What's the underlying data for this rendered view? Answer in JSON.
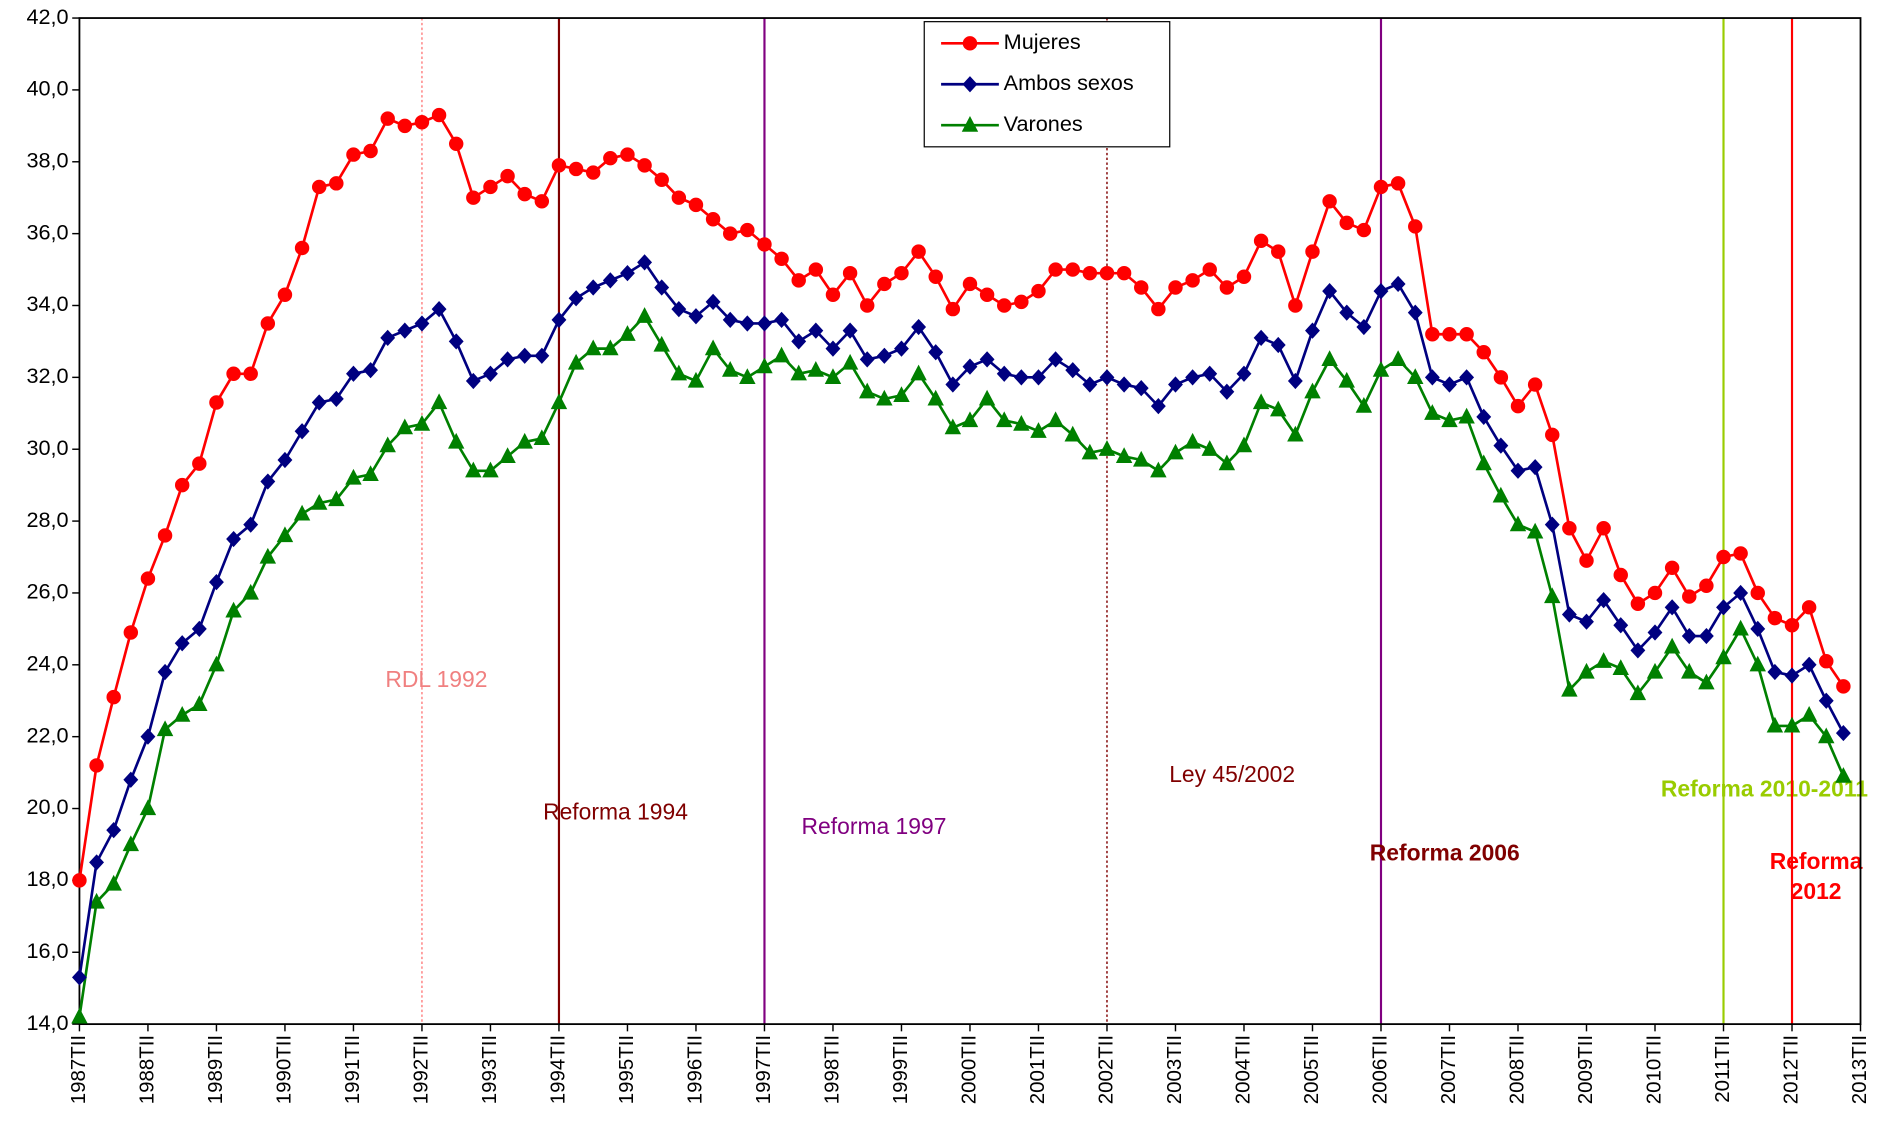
{
  "chart_data": {
    "type": "line",
    "categories": [
      "1987TII",
      null,
      null,
      null,
      "1988TII",
      null,
      null,
      null,
      "1989TII",
      null,
      null,
      null,
      "1990TII",
      null,
      null,
      null,
      "1991TII",
      null,
      null,
      null,
      "1992TII",
      null,
      null,
      null,
      "1993TII",
      null,
      null,
      null,
      "1994TII",
      null,
      null,
      null,
      "1995TII",
      null,
      null,
      null,
      "1996TII",
      null,
      null,
      null,
      "1997TII",
      null,
      null,
      null,
      "1998TII",
      null,
      null,
      null,
      "1999TII",
      null,
      null,
      null,
      "2000TII",
      null,
      null,
      null,
      "2001TII",
      null,
      null,
      null,
      "2002TII",
      null,
      null,
      null,
      "2003TII",
      null,
      null,
      null,
      "2004TII",
      null,
      null,
      null,
      "2005TII",
      null,
      null,
      null,
      "2006TII",
      null,
      null,
      null,
      "2007TII",
      null,
      null,
      null,
      "2008TII",
      null,
      null,
      null,
      "2009TII",
      null,
      null,
      null,
      "2010TII",
      null,
      null,
      null,
      "2011TII",
      null,
      null,
      null,
      "2012TII",
      null,
      null,
      null,
      "2013TII"
    ],
    "series": [
      {
        "name": "Mujeres",
        "color": "#ff0000",
        "marker": "circle",
        "values": [
          18.0,
          21.2,
          23.1,
          24.9,
          26.4,
          27.6,
          29.0,
          29.6,
          31.3,
          32.1,
          32.1,
          33.5,
          34.3,
          35.6,
          37.3,
          37.4,
          38.2,
          38.3,
          39.2,
          39.0,
          39.1,
          39.3,
          38.5,
          37.0,
          37.3,
          37.6,
          37.1,
          36.9,
          37.9,
          37.8,
          37.7,
          38.1,
          38.2,
          37.9,
          37.5,
          37.0,
          36.8,
          36.4,
          36.0,
          36.1,
          35.7,
          35.3,
          34.7,
          35.0,
          34.3,
          34.9,
          34.0,
          34.6,
          34.9,
          35.5,
          34.8,
          33.9,
          34.6,
          34.3,
          34.0,
          34.1,
          34.4,
          35.0,
          35.0,
          34.9,
          34.9,
          34.9,
          34.5,
          33.9,
          34.5,
          34.7,
          35.0,
          34.5,
          34.8,
          35.8,
          35.5,
          34.0,
          35.5,
          36.9,
          36.3,
          36.1,
          37.3,
          37.4,
          36.2,
          33.2,
          33.2,
          33.2,
          32.7,
          32.0,
          31.2,
          31.8,
          30.4,
          27.8,
          26.9,
          27.8,
          26.5,
          25.7,
          26.0,
          26.7,
          25.9,
          26.2,
          27.0,
          27.1,
          26.0,
          25.3,
          25.1,
          25.6,
          24.1,
          23.4,
          null
        ]
      },
      {
        "name": "Ambos sexos",
        "color": "#000080",
        "marker": "diamond",
        "values": [
          15.3,
          18.5,
          19.4,
          20.8,
          22.0,
          23.8,
          24.6,
          25.0,
          26.3,
          27.5,
          27.9,
          29.1,
          29.7,
          30.5,
          31.3,
          31.4,
          32.1,
          32.2,
          33.1,
          33.3,
          33.5,
          33.9,
          33.0,
          31.9,
          32.1,
          32.5,
          32.6,
          32.6,
          33.6,
          34.2,
          34.5,
          34.7,
          34.9,
          35.2,
          34.5,
          33.9,
          33.7,
          34.1,
          33.6,
          33.5,
          33.5,
          33.6,
          33.0,
          33.3,
          32.8,
          33.3,
          32.5,
          32.6,
          32.8,
          33.4,
          32.7,
          31.8,
          32.3,
          32.5,
          32.1,
          32.0,
          32.0,
          32.5,
          32.2,
          31.8,
          32.0,
          31.8,
          31.7,
          31.2,
          31.8,
          32.0,
          32.1,
          31.6,
          32.1,
          33.1,
          32.9,
          31.9,
          33.3,
          34.4,
          33.8,
          33.4,
          34.4,
          34.6,
          33.8,
          32.0,
          31.8,
          32.0,
          30.9,
          30.1,
          29.4,
          29.5,
          27.9,
          25.4,
          25.2,
          25.8,
          25.1,
          24.4,
          24.9,
          25.6,
          24.8,
          24.8,
          25.6,
          26.0,
          25.0,
          23.8,
          23.7,
          24.0,
          23.0,
          22.1,
          null
        ]
      },
      {
        "name": "Varones",
        "color": "#008000",
        "marker": "triangle",
        "values": [
          14.2,
          17.4,
          17.9,
          19.0,
          20.0,
          22.2,
          22.6,
          22.9,
          24.0,
          25.5,
          26.0,
          27.0,
          27.6,
          28.2,
          28.5,
          28.6,
          29.2,
          29.3,
          30.1,
          30.6,
          30.7,
          31.3,
          30.2,
          29.4,
          29.4,
          29.8,
          30.2,
          30.3,
          31.3,
          32.4,
          32.8,
          32.8,
          33.2,
          33.7,
          32.9,
          32.1,
          31.9,
          32.8,
          32.2,
          32.0,
          32.3,
          32.6,
          32.1,
          32.2,
          32.0,
          32.4,
          31.6,
          31.4,
          31.5,
          32.1,
          31.4,
          30.6,
          30.8,
          31.4,
          30.8,
          30.7,
          30.5,
          30.8,
          30.4,
          29.9,
          30.0,
          29.8,
          29.7,
          29.4,
          29.9,
          30.2,
          30.0,
          29.6,
          30.1,
          31.3,
          31.1,
          30.4,
          31.6,
          32.5,
          31.9,
          31.2,
          32.2,
          32.5,
          32.0,
          31.0,
          30.8,
          30.9,
          29.6,
          28.7,
          27.9,
          27.7,
          25.9,
          23.3,
          23.8,
          24.1,
          23.9,
          23.2,
          23.8,
          24.5,
          23.8,
          23.5,
          24.2,
          25.0,
          24.0,
          22.3,
          22.3,
          22.6,
          22.0,
          20.9,
          null
        ]
      }
    ],
    "ylim": [
      14,
      42
    ],
    "yticks": [
      {
        "value": 14,
        "label": "14,0"
      },
      {
        "value": 16,
        "label": "16,0"
      },
      {
        "value": 18,
        "label": "18,0"
      },
      {
        "value": 20,
        "label": "20,0"
      },
      {
        "value": 22,
        "label": "22,0"
      },
      {
        "value": 24,
        "label": "24,0"
      },
      {
        "value": 26,
        "label": "26,0"
      },
      {
        "value": 28,
        "label": "28,0"
      },
      {
        "value": 30,
        "label": "30,0"
      },
      {
        "value": 32,
        "label": "32,0"
      },
      {
        "value": 34,
        "label": "34,0"
      },
      {
        "value": 36,
        "label": "36,0"
      },
      {
        "value": 38,
        "label": "38,0"
      },
      {
        "value": 40,
        "label": "40,0"
      },
      {
        "value": 42,
        "label": "42,0"
      }
    ],
    "grid": false,
    "legend": "upper center",
    "annotations": [
      {
        "lines": [
          "RDL 1992"
        ],
        "category": "1992TII",
        "line_color": "#ff8080",
        "text_color": "#f08080",
        "dash": true,
        "bold": false
      },
      {
        "lines": [
          "Reforma 1994"
        ],
        "category": "1994TII",
        "line_color": "#800000",
        "text_color": "#800000",
        "dash": false,
        "bold": false
      },
      {
        "lines": [
          "Reforma 1997"
        ],
        "category": "1997TII",
        "line_color": "#800080",
        "text_color": "#800080",
        "dash": false,
        "bold": false
      },
      {
        "lines": [
          "Ley 45/2002"
        ],
        "category": "2002TII",
        "line_color": "#800000",
        "text_color": "#800000",
        "dash": true,
        "bold": false
      },
      {
        "lines": [
          "Reforma 2006"
        ],
        "category": "2006TII",
        "line_color": "#800080",
        "text_color": "#800000",
        "dash": false,
        "bold": true
      },
      {
        "lines": [
          "Reforma 2010-2011"
        ],
        "category": "2011TII",
        "line_color": "#99cc00",
        "text_color": "#99cc00",
        "dash": false,
        "bold": true
      },
      {
        "lines": [
          "Reforma",
          "2012"
        ],
        "category": "2012TII",
        "line_color": "#ff0000",
        "text_color": "#ff0000",
        "dash": false,
        "bold": true
      }
    ]
  }
}
